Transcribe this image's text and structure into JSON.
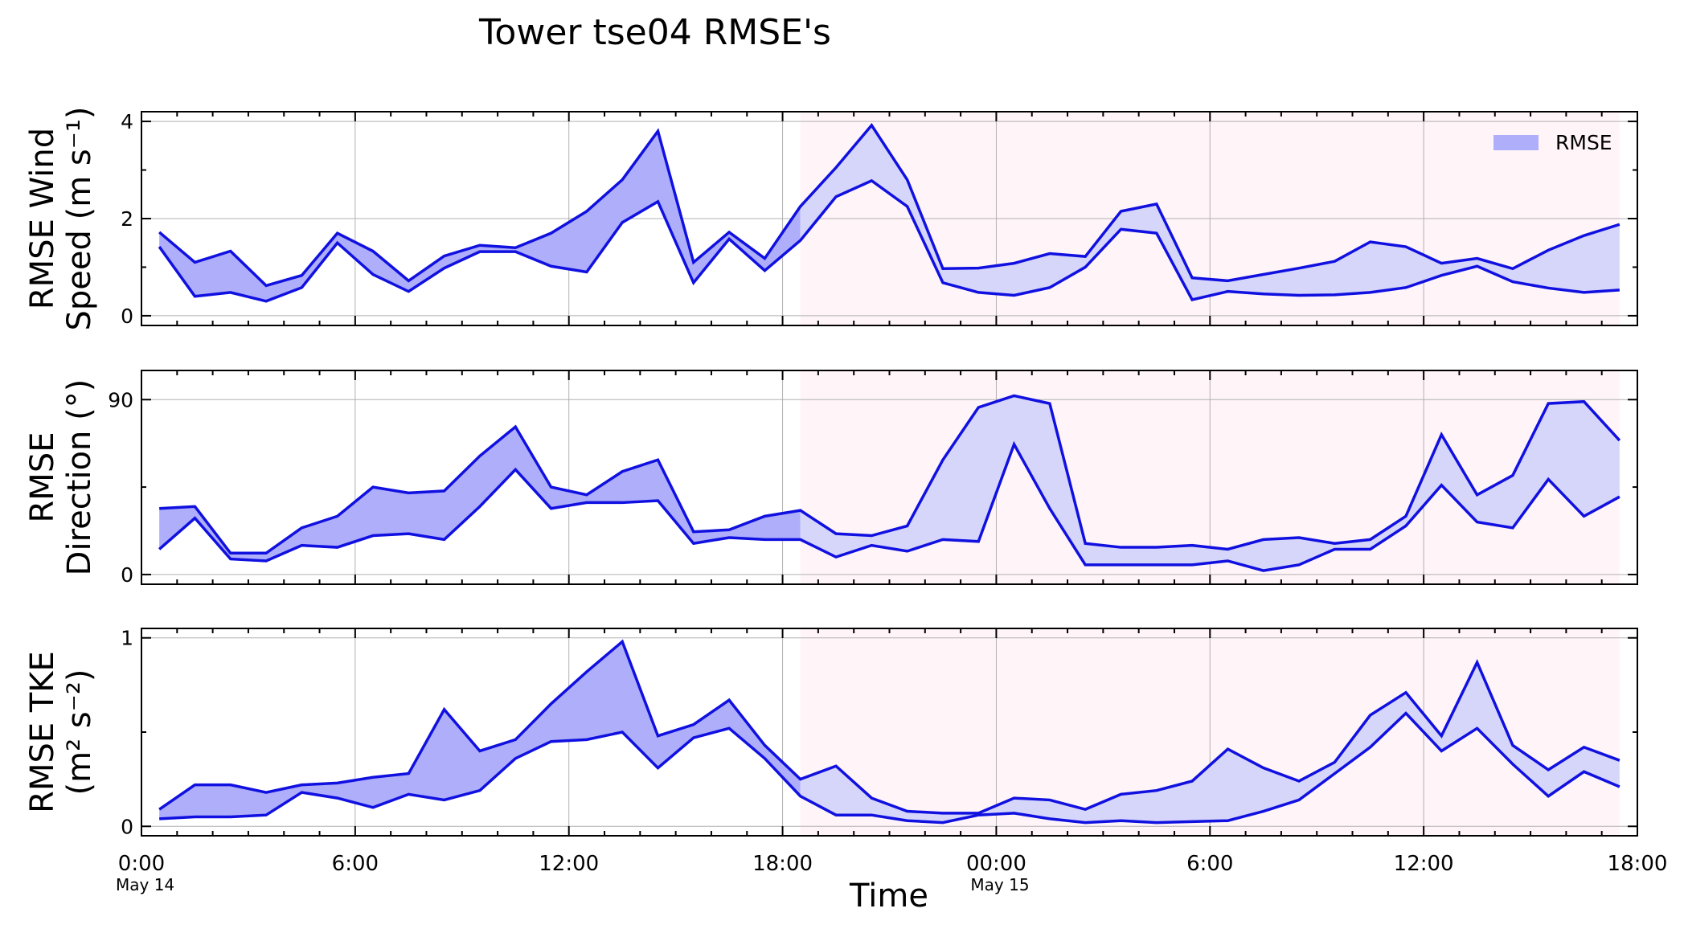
{
  "title": "Tower tse04 RMSE's",
  "xlabel": "Time",
  "x_ticks": [
    "0:00",
    "6:00",
    "12:00",
    "18:00",
    "00:00",
    "6:00",
    "12:00",
    "18:00"
  ],
  "x_date_labels": [
    {
      "at": "0:00",
      "text": "May 14"
    },
    {
      "at": "00:00",
      "text": "May 15"
    }
  ],
  "legend": {
    "label": "RMSE",
    "position": "top-right"
  },
  "colors": {
    "line": "#1010e0",
    "fill_before": "#aeaefa",
    "fill_after": "#d6d6fb",
    "shade": "#fff4f8",
    "grid": "#b0b0b0"
  },
  "chart_data": [
    {
      "type": "area",
      "ylabel_line1": "RMSE Wind",
      "ylabel_line2": "Speed (m s⁻¹)",
      "yticks": [
        0,
        2,
        4
      ],
      "ylim": [
        -0.2,
        4.2
      ],
      "x": [
        "0:30",
        "1:30",
        "2:30",
        "3:30",
        "4:30",
        "5:30",
        "6:30",
        "7:30",
        "8:30",
        "9:30",
        "10:30",
        "11:30",
        "12:30",
        "13:30",
        "14:30",
        "15:30",
        "16:30",
        "17:30",
        "18:30",
        "19:30",
        "20:30",
        "21:30",
        "22:30",
        "23:30",
        "0:30",
        "1:30",
        "2:30",
        "3:30",
        "4:30",
        "5:30",
        "6:30",
        "7:30",
        "8:30",
        "9:30",
        "10:30",
        "11:30",
        "12:30",
        "13:30",
        "14:30",
        "15:30",
        "16:30",
        "17:30"
      ],
      "shaded_region": {
        "from": "18:30",
        "to": "17:30"
      },
      "series": [
        {
          "values": [
            1.72,
            1.1,
            1.33,
            0.62,
            0.83,
            1.7,
            1.33,
            0.72,
            1.23,
            1.45,
            1.4,
            1.7,
            2.15,
            2.8,
            3.8,
            1.1,
            1.72,
            1.18,
            2.25,
            3.05,
            3.92,
            2.8,
            0.97,
            0.98,
            1.08,
            1.28,
            1.22,
            2.15,
            2.3,
            0.78,
            0.72,
            0.85,
            0.98,
            1.12,
            1.52,
            1.42,
            1.08,
            1.18,
            0.97,
            1.35,
            1.65,
            1.88
          ]
        },
        {
          "values": [
            1.42,
            0.4,
            0.48,
            0.3,
            0.58,
            1.5,
            0.85,
            0.5,
            0.98,
            1.32,
            1.32,
            1.02,
            0.9,
            1.92,
            2.35,
            0.68,
            1.58,
            0.93,
            1.55,
            2.45,
            2.78,
            2.25,
            0.68,
            0.48,
            0.42,
            0.58,
            1.0,
            1.78,
            1.7,
            0.33,
            0.5,
            0.45,
            0.42,
            0.43,
            0.48,
            0.58,
            0.83,
            1.02,
            0.7,
            0.57,
            0.48,
            0.53
          ]
        }
      ]
    },
    {
      "type": "area",
      "ylabel_line1": "RMSE",
      "ylabel_line2": "Direction (°)",
      "yticks": [
        0,
        90
      ],
      "ylim": [
        -5,
        105
      ],
      "x": [
        "0:30",
        "1:30",
        "2:30",
        "3:30",
        "4:30",
        "5:30",
        "6:30",
        "7:30",
        "8:30",
        "9:30",
        "10:30",
        "11:30",
        "12:30",
        "13:30",
        "14:30",
        "15:30",
        "16:30",
        "17:30",
        "18:30",
        "19:30",
        "20:30",
        "21:30",
        "22:30",
        "23:30",
        "0:30",
        "1:30",
        "2:30",
        "3:30",
        "4:30",
        "5:30",
        "6:30",
        "7:30",
        "8:30",
        "9:30",
        "10:30",
        "11:30",
        "12:30",
        "13:30",
        "14:30",
        "15:30",
        "16:30",
        "17:30"
      ],
      "shaded_region": {
        "from": "18:30",
        "to": "17:30"
      },
      "series": [
        {
          "values": [
            34,
            35,
            11,
            11,
            24,
            30,
            45,
            42,
            43,
            61,
            76,
            45,
            41,
            53,
            59,
            22,
            23,
            30,
            33,
            21,
            20,
            25,
            59,
            86,
            92,
            88,
            16,
            14,
            14,
            15,
            13,
            18,
            19,
            16,
            18,
            30,
            72,
            41,
            51,
            88,
            89,
            69
          ]
        },
        {
          "values": [
            13,
            29,
            8,
            7,
            15,
            14,
            20,
            21,
            18,
            35,
            54,
            34,
            37,
            37,
            38,
            16,
            19,
            18,
            18,
            9,
            15,
            12,
            18,
            17,
            67,
            34,
            5,
            5,
            5,
            5,
            7,
            2,
            5,
            13,
            13,
            25,
            46,
            27,
            24,
            49,
            30,
            40
          ]
        }
      ]
    },
    {
      "type": "area",
      "ylabel_line1": "RMSE TKE",
      "ylabel_line2": "(m² s⁻²)",
      "yticks": [
        0,
        1
      ],
      "ylim": [
        -0.05,
        1.05
      ],
      "x": [
        "0:30",
        "1:30",
        "2:30",
        "3:30",
        "4:30",
        "5:30",
        "6:30",
        "7:30",
        "8:30",
        "9:30",
        "10:30",
        "11:30",
        "12:30",
        "13:30",
        "14:30",
        "15:30",
        "16:30",
        "17:30",
        "18:30",
        "19:30",
        "20:30",
        "21:30",
        "22:30",
        "23:30",
        "0:30",
        "1:30",
        "2:30",
        "3:30",
        "4:30",
        "5:30",
        "6:30",
        "7:30",
        "8:30",
        "9:30",
        "10:30",
        "11:30",
        "12:30",
        "13:30",
        "14:30",
        "15:30",
        "16:30",
        "17:30"
      ],
      "shaded_region": {
        "from": "18:30",
        "to": "17:30"
      },
      "series": [
        {
          "values": [
            0.09,
            0.22,
            0.22,
            0.18,
            0.22,
            0.23,
            0.26,
            0.28,
            0.62,
            0.4,
            0.46,
            0.65,
            0.82,
            0.98,
            0.48,
            0.54,
            0.67,
            0.43,
            0.25,
            0.32,
            0.15,
            0.08,
            0.07,
            0.07,
            0.15,
            0.14,
            0.09,
            0.17,
            0.19,
            0.24,
            0.41,
            0.31,
            0.24,
            0.34,
            0.59,
            0.71,
            0.48,
            0.87,
            0.43,
            0.3,
            0.42,
            0.35
          ]
        },
        {
          "values": [
            0.04,
            0.05,
            0.05,
            0.06,
            0.18,
            0.15,
            0.1,
            0.17,
            0.14,
            0.19,
            0.36,
            0.45,
            0.46,
            0.5,
            0.31,
            0.47,
            0.52,
            0.36,
            0.16,
            0.06,
            0.06,
            0.03,
            0.02,
            0.06,
            0.07,
            0.04,
            0.02,
            0.03,
            0.02,
            0.025,
            0.03,
            0.08,
            0.14,
            0.28,
            0.42,
            0.6,
            0.4,
            0.52,
            0.33,
            0.16,
            0.29,
            0.21
          ]
        }
      ]
    }
  ]
}
